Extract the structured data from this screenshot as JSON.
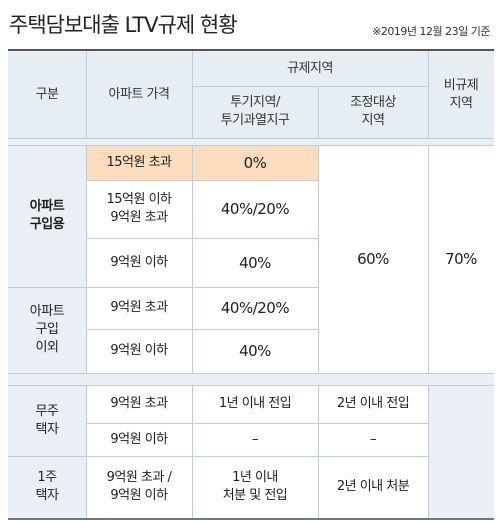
{
  "title": "주택담보대출 LTV규제 현황",
  "date_note": "※2019년 12월 23일 기준",
  "header": {
    "category": "구분",
    "apt_price": "아파트 가격",
    "regulated_area": "규제지역",
    "speculation_area": "투기지역/\n투기과열지구",
    "adjustment_area": "조정대상\n지역",
    "non_regulated": "비규제\n지역"
  },
  "groups": {
    "apt_purchase": "아파트\n구입용",
    "apt_other": "아파트\n구입\n이외",
    "no_house": "무주\n택자",
    "one_house": "1주\n택자"
  },
  "rows": [
    {
      "price": "15억원 초과",
      "spec": "0%"
    },
    {
      "price": "15억원 이하\n9억원 초과",
      "spec": "40%/20%"
    },
    {
      "price": "9억원 이하",
      "spec": "40%"
    },
    {
      "price": "9억원 초과",
      "spec": "40%/20%"
    },
    {
      "price": "9억원 이하",
      "spec": "40%"
    }
  ],
  "merged": {
    "adjustment_value": "60%",
    "non_regulated_value": "70%"
  },
  "lower_rows": [
    {
      "price": "9억원 초과",
      "spec": "1년 이내 전입",
      "adj": "2년 이내 전입"
    },
    {
      "price": "9억원 이하",
      "spec": "–",
      "adj": "–"
    },
    {
      "price": "9억원 초과 /\n9억원 이하",
      "spec": "1년 이내\n처분 및 전입",
      "adj": "2년 이내 처분"
    }
  ],
  "colors": {
    "highlight": "#fbdcbd",
    "header_band": "#e7eef3",
    "grid": "#c2cdd6"
  }
}
